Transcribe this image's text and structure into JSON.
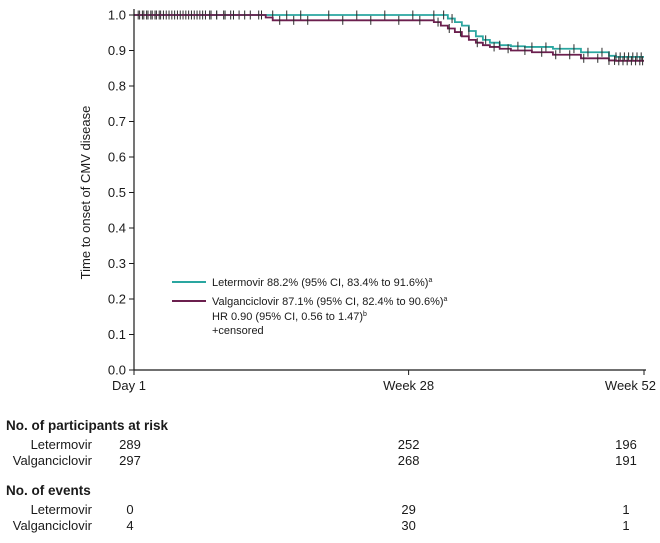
{
  "chart_data": {
    "type": "line",
    "title": "",
    "ylabel": "Time to onset of CMV disease",
    "xlabel": "",
    "ylim": [
      0.0,
      1.0
    ],
    "yticks": [
      "0.0",
      "0.1",
      "0.2",
      "0.3",
      "0.4",
      "0.5",
      "0.6",
      "0.7",
      "0.8",
      "0.9",
      "1.0"
    ],
    "x_ticks": [
      "Day 1",
      "Week 28",
      "Week 52"
    ],
    "xlim": [
      1,
      365
    ],
    "x_tick_values": [
      1,
      197,
      365
    ],
    "legend_placement": "lower-left inside plot",
    "series": [
      {
        "name": "Letermovir 88.2% (95% CI, 83.4% to 91.6%)",
        "superscript": "a",
        "color": "#2aa6a0",
        "x": [
          1,
          220,
          225,
          230,
          235,
          240,
          245,
          250,
          255,
          262,
          270,
          280,
          300,
          320,
          340,
          345,
          365
        ],
        "y": [
          1.0,
          1.0,
          0.99,
          0.98,
          0.97,
          0.955,
          0.94,
          0.93,
          0.922,
          0.915,
          0.912,
          0.91,
          0.905,
          0.895,
          0.885,
          0.882,
          0.882
        ],
        "censored_x": [
          5,
          8,
          11,
          14,
          17,
          20,
          24,
          28,
          32,
          36,
          40,
          44,
          48,
          52,
          56,
          60,
          65,
          70,
          76,
          84,
          92,
          100,
          110,
          120,
          140,
          160,
          180,
          200,
          215,
          222,
          228,
          240,
          252,
          262,
          275,
          285,
          295,
          305,
          315,
          325,
          335,
          340,
          345,
          348,
          351,
          354,
          357,
          360,
          363
        ]
      },
      {
        "name": "Valganciclovir 87.1% (95% CI, 82.4% to 90.6%)",
        "superscript": "a",
        "color": "#6b1f4e",
        "x": [
          1,
          90,
          95,
          100,
          210,
          215,
          220,
          225,
          230,
          235,
          240,
          245,
          250,
          255,
          262,
          270,
          285,
          300,
          320,
          340,
          345,
          365
        ],
        "y": [
          1.0,
          1.0,
          0.993,
          0.985,
          0.985,
          0.98,
          0.97,
          0.962,
          0.952,
          0.94,
          0.93,
          0.922,
          0.915,
          0.91,
          0.905,
          0.9,
          0.895,
          0.888,
          0.878,
          0.872,
          0.871,
          0.871
        ],
        "censored_x": [
          4,
          7,
          10,
          13,
          16,
          19,
          22,
          26,
          30,
          34,
          38,
          42,
          46,
          50,
          55,
          60,
          66,
          72,
          80,
          90,
          105,
          115,
          125,
          150,
          170,
          190,
          205,
          218,
          226,
          234,
          246,
          258,
          268,
          280,
          292,
          302,
          312,
          322,
          332,
          340,
          344,
          347,
          350,
          353,
          356,
          359,
          362,
          364
        ]
      }
    ],
    "annotations": [
      {
        "text": "HR 0.90 (95% CI, 0.56 to 1.47)",
        "superscript": "b"
      },
      {
        "text": "+censored",
        "superscript": ""
      }
    ]
  },
  "risk_table": {
    "at_risk_heading": "No. of participants at risk",
    "events_heading": "No. of events",
    "at_risk_rows": [
      {
        "label": "Letermovir",
        "values": [
          "289",
          "252",
          "196"
        ]
      },
      {
        "label": "Valganciclovir",
        "values": [
          "297",
          "268",
          "191"
        ]
      }
    ],
    "event_rows": [
      {
        "label": "Letermovir",
        "values": [
          "0",
          "29",
          "1"
        ]
      },
      {
        "label": "Valganciclovir",
        "values": [
          "4",
          "30",
          "1"
        ]
      }
    ]
  }
}
